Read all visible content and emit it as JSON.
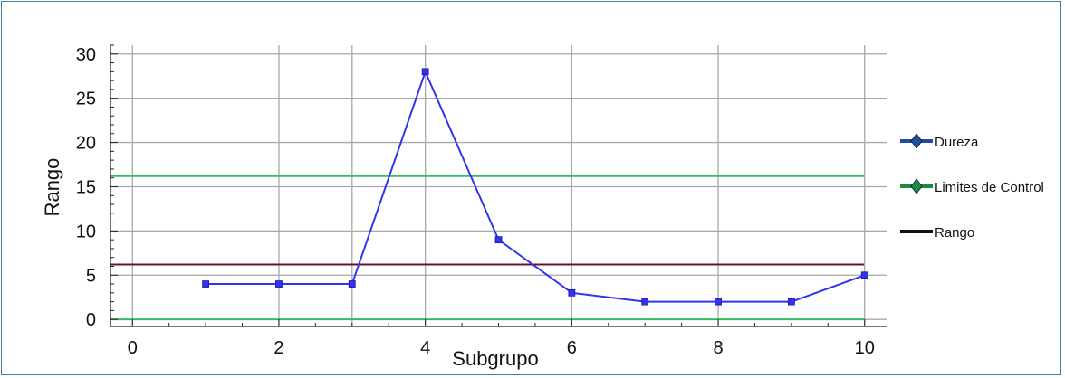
{
  "chart_data": {
    "type": "line",
    "title": "",
    "xlabel": "Subgrupo",
    "ylabel": "Rango",
    "xlim": [
      -0.3,
      10.3
    ],
    "ylim": [
      -0.8,
      31
    ],
    "xticks": [
      0,
      2,
      4,
      6,
      8,
      10
    ],
    "yticks": [
      0,
      5,
      10,
      15,
      20,
      25,
      30
    ],
    "x_grid": [
      0,
      2,
      3,
      4,
      6,
      8,
      10
    ],
    "y_grid": [
      0,
      5,
      10,
      15,
      20,
      25,
      30
    ],
    "grid": true,
    "legend_position": "right",
    "series": [
      {
        "name": "Dureza",
        "color": "#3333ee",
        "x": [
          1,
          2,
          3,
          4,
          5,
          6,
          7,
          8,
          9,
          10
        ],
        "values": [
          4,
          4,
          4,
          28,
          9,
          3,
          2,
          2,
          2,
          5
        ]
      }
    ],
    "reference_lines": [
      {
        "name": "Limites de Control",
        "color": "#33bb66",
        "values": [
          16.2,
          0
        ]
      },
      {
        "name": "Rango",
        "color": "#6b1030",
        "values": [
          6.2
        ]
      }
    ],
    "legend": [
      {
        "label": "Dureza",
        "color": "#1f4e9c"
      },
      {
        "label": "Limites de Control",
        "color": "#1e8a3e"
      },
      {
        "label": "Rango",
        "color": "#111111"
      }
    ]
  }
}
